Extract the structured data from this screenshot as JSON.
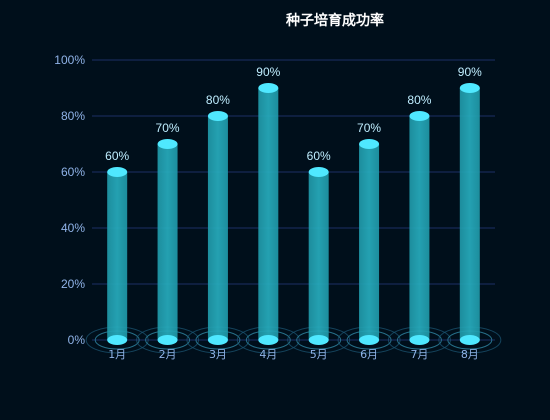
{
  "chart_data": {
    "type": "bar",
    "title": "种子培育成功率",
    "categories": [
      "1月",
      "2月",
      "3月",
      "4月",
      "5月",
      "6月",
      "7月",
      "8月"
    ],
    "values": [
      60,
      70,
      80,
      90,
      60,
      70,
      80,
      90
    ],
    "data_labels": [
      "60%",
      "70%",
      "80%",
      "90%",
      "60%",
      "70%",
      "80%",
      "90%"
    ],
    "y_ticks": [
      "0%",
      "20%",
      "40%",
      "60%",
      "80%",
      "100%"
    ],
    "ylim": [
      0,
      100
    ],
    "xlabel": "",
    "ylabel": "",
    "grid": true,
    "legend": "none",
    "colors": {
      "background": "#000f1b",
      "bar": "#27adbe",
      "bar_cap": "#4fe8ff",
      "grid": "#1c2f66",
      "axis_text": "#8fb3e8",
      "label": "#bfeeff",
      "title": "#ffffff"
    }
  }
}
